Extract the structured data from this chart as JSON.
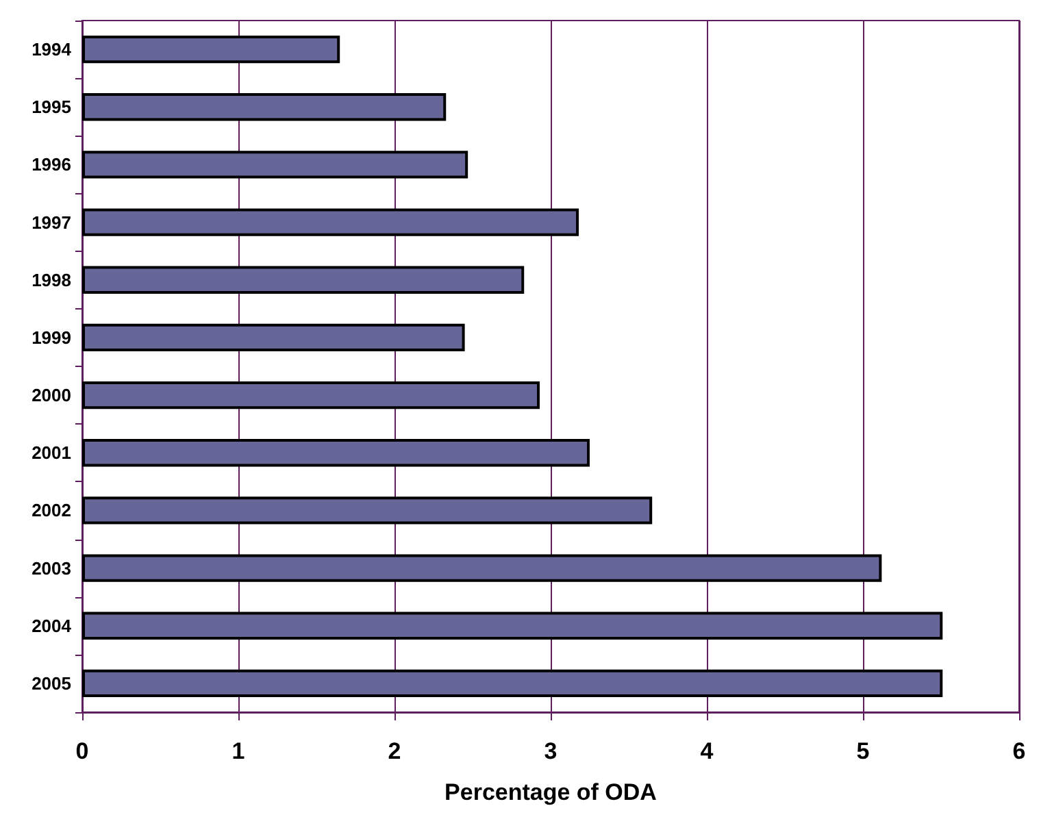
{
  "chart_data": {
    "type": "bar",
    "orientation": "horizontal",
    "xlabel": "Percentage of ODA",
    "categories": [
      "1994",
      "1995",
      "1996",
      "1997",
      "1998",
      "1999",
      "2000",
      "2001",
      "2002",
      "2003",
      "2004",
      "2005"
    ],
    "values": [
      1.65,
      2.33,
      2.47,
      3.18,
      2.83,
      2.45,
      2.93,
      3.25,
      3.65,
      5.12,
      5.51,
      5.51
    ],
    "color": "#666699",
    "xlim": [
      0,
      6
    ],
    "xticks": [
      0,
      1,
      2,
      3,
      4,
      5,
      6
    ],
    "grid": "x"
  }
}
